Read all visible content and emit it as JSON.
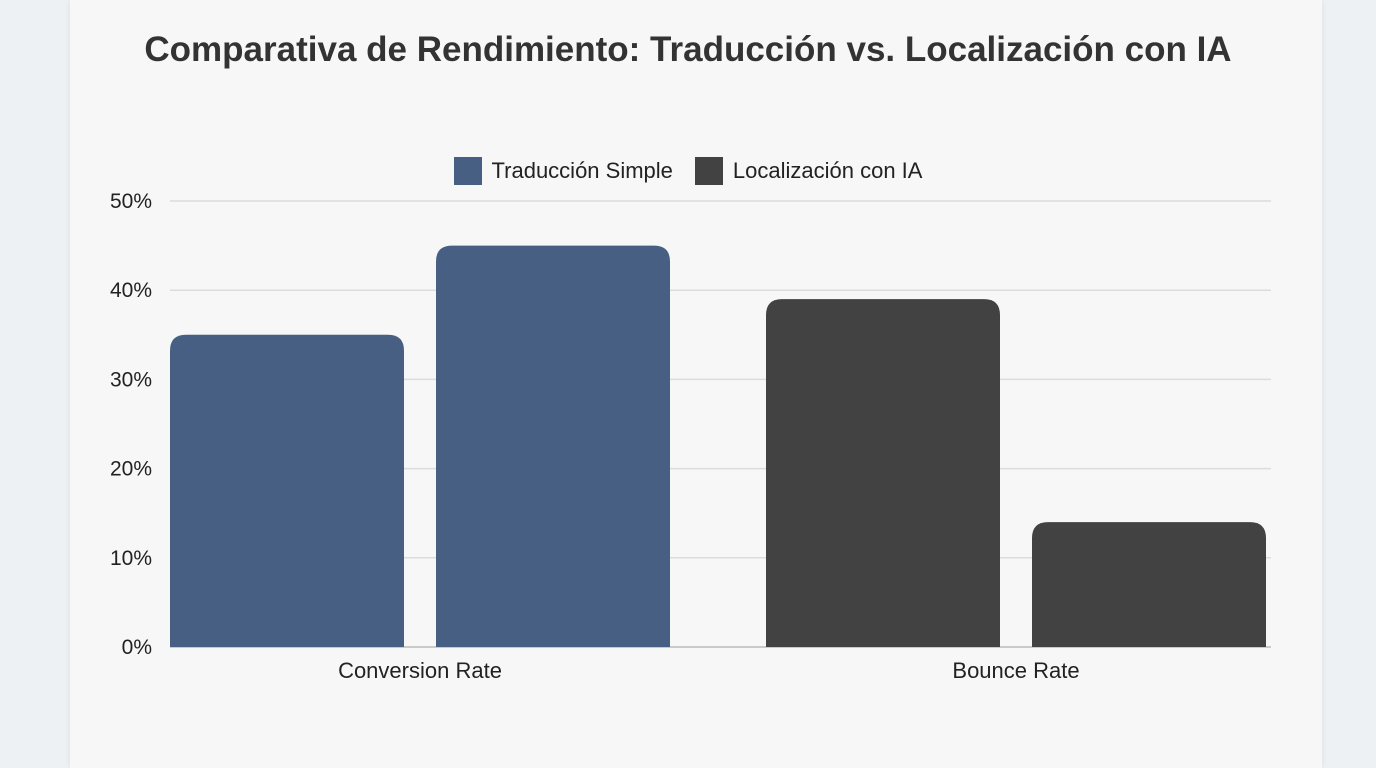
{
  "chart_data": {
    "type": "bar",
    "title": "Comparativa de Rendimiento: Traducción vs. Localización con IA",
    "categories": [
      "Conversion Rate",
      "Bounce Rate"
    ],
    "series": [
      {
        "name": "Traducción Simple",
        "values": [
          35,
          39
        ]
      },
      {
        "name": "Localización con IA",
        "values": [
          45,
          14
        ]
      }
    ],
    "bar_colors_by_category": [
      "#475f82",
      "#424242"
    ],
    "legend_colors": [
      "#475f82",
      "#424242"
    ],
    "ylim": [
      0,
      50
    ],
    "yticks": [
      "0%",
      "10%",
      "20%",
      "30%",
      "40%",
      "50%"
    ],
    "grid": true,
    "legend_position": "top"
  }
}
